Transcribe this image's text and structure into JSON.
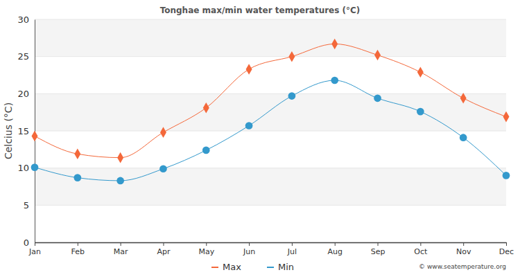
{
  "chart_data": {
    "type": "line",
    "title": "Tonghae max/min water temperatures (°C)",
    "y_label": "Celcius (°C)",
    "annotations": [
      "© www.seatemperature.org"
    ],
    "categories": [
      "Jan",
      "Feb",
      "Mar",
      "Apr",
      "May",
      "Jun",
      "Jul",
      "Aug",
      "Sep",
      "Oct",
      "Nov",
      "Dec"
    ],
    "series": [
      {
        "name": "Max",
        "color": "#f4683a",
        "marker": "diamond",
        "values": [
          14.3,
          11.9,
          11.4,
          14.8,
          18.1,
          23.3,
          25.0,
          26.7,
          25.2,
          22.9,
          19.4,
          16.9
        ]
      },
      {
        "name": "Min",
        "color": "#3399cc",
        "marker": "circle",
        "values": [
          10.1,
          8.7,
          8.3,
          9.9,
          12.4,
          15.7,
          19.7,
          21.8,
          19.4,
          17.6,
          14.1,
          9.0
        ]
      }
    ],
    "ylim": [
      0,
      30
    ],
    "yticks": [
      0,
      5,
      10,
      15,
      20,
      25,
      30
    ],
    "grid": true,
    "legend": "bottom"
  }
}
